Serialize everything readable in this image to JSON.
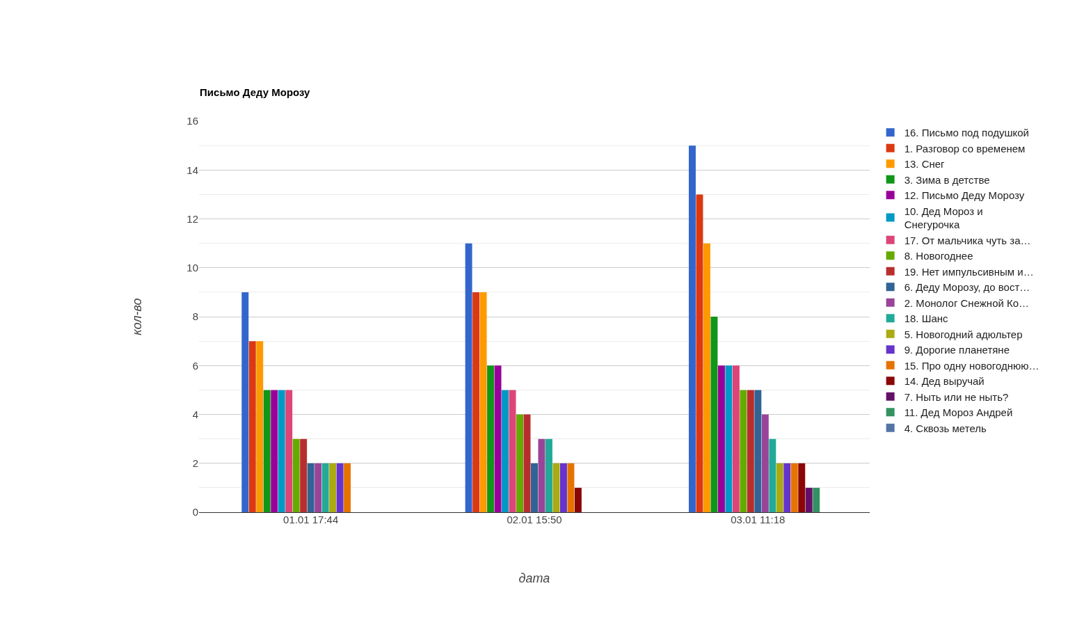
{
  "chart_data": {
    "type": "bar",
    "title": "Письмо Деду Морозу",
    "xlabel": "дата",
    "ylabel": "кол-во",
    "categories": [
      "01.01 17:44",
      "02.01 15:50",
      "03.01 11:18"
    ],
    "ylim": [
      0,
      16
    ],
    "yticks": [
      0,
      2,
      4,
      6,
      8,
      10,
      12,
      14,
      16
    ],
    "grid": "y",
    "legend": "right",
    "series": [
      {
        "name": "16. Письмо под подушкой",
        "color": "#3366cc",
        "values": [
          9,
          11,
          15
        ]
      },
      {
        "name": "1. Разговор со временем",
        "color": "#dc3912",
        "values": [
          7,
          9,
          13
        ]
      },
      {
        "name": "13. Снег",
        "color": "#ff9900",
        "values": [
          7,
          9,
          11
        ]
      },
      {
        "name": "3. Зима в детстве",
        "color": "#109618",
        "values": [
          5,
          6,
          8
        ]
      },
      {
        "name": "12. Письмо Деду Морозу",
        "color": "#990099",
        "values": [
          5,
          6,
          6
        ]
      },
      {
        "name": "10. Дед Мороз и Снегурочка",
        "color": "#0099c6",
        "values": [
          5,
          5,
          6
        ]
      },
      {
        "name": "17. От мальчика чуть за…",
        "color": "#dd4477",
        "values": [
          5,
          5,
          6
        ]
      },
      {
        "name": "8. Новогоднее",
        "color": "#66aa00",
        "values": [
          3,
          4,
          5
        ]
      },
      {
        "name": "19. Нет импульсивным и…",
        "color": "#b82e2e",
        "values": [
          3,
          4,
          5
        ]
      },
      {
        "name": "6. Деду Морозу, до вост…",
        "color": "#316395",
        "values": [
          2,
          2,
          5
        ]
      },
      {
        "name": "2. Монолог Снежной Ко…",
        "color": "#994499",
        "values": [
          2,
          3,
          4
        ]
      },
      {
        "name": "18. Шанс",
        "color": "#22aa99",
        "values": [
          2,
          3,
          3
        ]
      },
      {
        "name": "5. Новогодний адюльтер",
        "color": "#aaaa11",
        "values": [
          2,
          2,
          2
        ]
      },
      {
        "name": "9. Дорогие планетяне",
        "color": "#6633cc",
        "values": [
          2,
          2,
          2
        ]
      },
      {
        "name": "15. Про одну новогоднюю…",
        "color": "#e67300",
        "values": [
          2,
          2,
          2
        ]
      },
      {
        "name": "14. Дед выручай",
        "color": "#8b0707",
        "values": [
          0,
          1,
          2
        ]
      },
      {
        "name": "7. Ныть или не ныть?",
        "color": "#651067",
        "values": [
          0,
          0,
          1
        ]
      },
      {
        "name": "11. Дед Мороз Андрей",
        "color": "#329262",
        "values": [
          0,
          0,
          1
        ]
      },
      {
        "name": "4. Сквозь метель",
        "color": "#5574a6",
        "values": [
          0,
          0,
          0
        ]
      }
    ]
  }
}
